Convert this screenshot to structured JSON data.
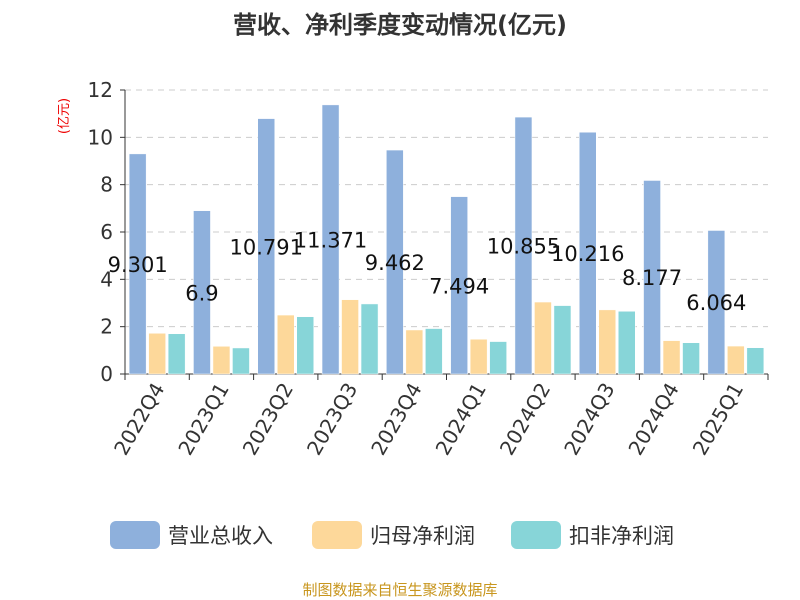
{
  "chart_data": {
    "type": "bar",
    "title": "营收、净利季度变动情况(亿元)",
    "ylabel": "(亿元)",
    "xlabel": "",
    "ylim": [
      0,
      12
    ],
    "yticks": [
      0,
      2,
      4,
      6,
      8,
      10,
      12
    ],
    "grid": true,
    "legend_position": "bottom",
    "categories": [
      "2022Q4",
      "2023Q1",
      "2023Q2",
      "2023Q3",
      "2023Q4",
      "2024Q1",
      "2024Q2",
      "2024Q3",
      "2024Q4",
      "2025Q1"
    ],
    "series": [
      {
        "name": "营业总收入",
        "color": "#8eb0dc",
        "values": [
          9.301,
          6.9,
          10.791,
          11.371,
          9.462,
          7.494,
          10.855,
          10.216,
          8.177,
          6.064
        ],
        "labels": [
          "9.301",
          "6.9",
          "10.791",
          "11.371",
          "9.462",
          "7.494",
          "10.855",
          "10.216",
          "8.177",
          "6.064"
        ]
      },
      {
        "name": "归母净利润",
        "color": "#fdd89a",
        "values": [
          1.72,
          1.17,
          2.49,
          3.14,
          1.86,
          1.47,
          3.04,
          2.71,
          1.41,
          1.18
        ]
      },
      {
        "name": "扣非净利润",
        "color": "#87d5d8",
        "values": [
          1.7,
          1.1,
          2.42,
          2.96,
          1.92,
          1.37,
          2.89,
          2.65,
          1.32,
          1.11
        ]
      }
    ],
    "source": "制图数据来自恒生聚源数据库"
  }
}
